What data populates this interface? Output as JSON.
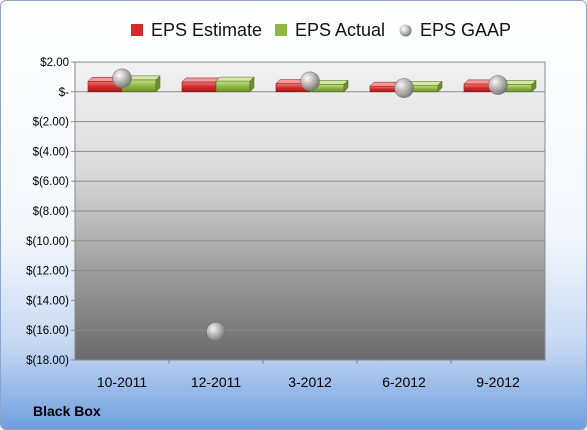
{
  "chart_data": {
    "type": "bar",
    "title": "",
    "categories": [
      "10-2011",
      "12-2011",
      "3-2012",
      "6-2012",
      "9-2012"
    ],
    "series": [
      {
        "name": "EPS Estimate",
        "type": "bar",
        "color": "#d62a2a",
        "values": [
          0.7,
          0.66,
          0.55,
          0.38,
          0.53
        ]
      },
      {
        "name": "EPS Actual",
        "type": "bar",
        "color": "#8fb743",
        "values": [
          0.8,
          0.72,
          0.5,
          0.44,
          0.5
        ]
      },
      {
        "name": "EPS GAAP",
        "type": "scatter",
        "color": "#9a9a9a",
        "values": [
          0.9,
          -16.1,
          0.7,
          0.25,
          0.45
        ]
      }
    ],
    "yticks": [
      "$2.00",
      "$-",
      "$(2.00)",
      "$(4.00)",
      "$(6.00)",
      "$(8.00)",
      "$(10.00)",
      "$(12.00)",
      "$(14.00)",
      "$(16.00)",
      "$(18.00)"
    ],
    "ylim": [
      -18,
      2
    ],
    "grid": true,
    "legend_position": "top"
  },
  "company": "Black Box"
}
